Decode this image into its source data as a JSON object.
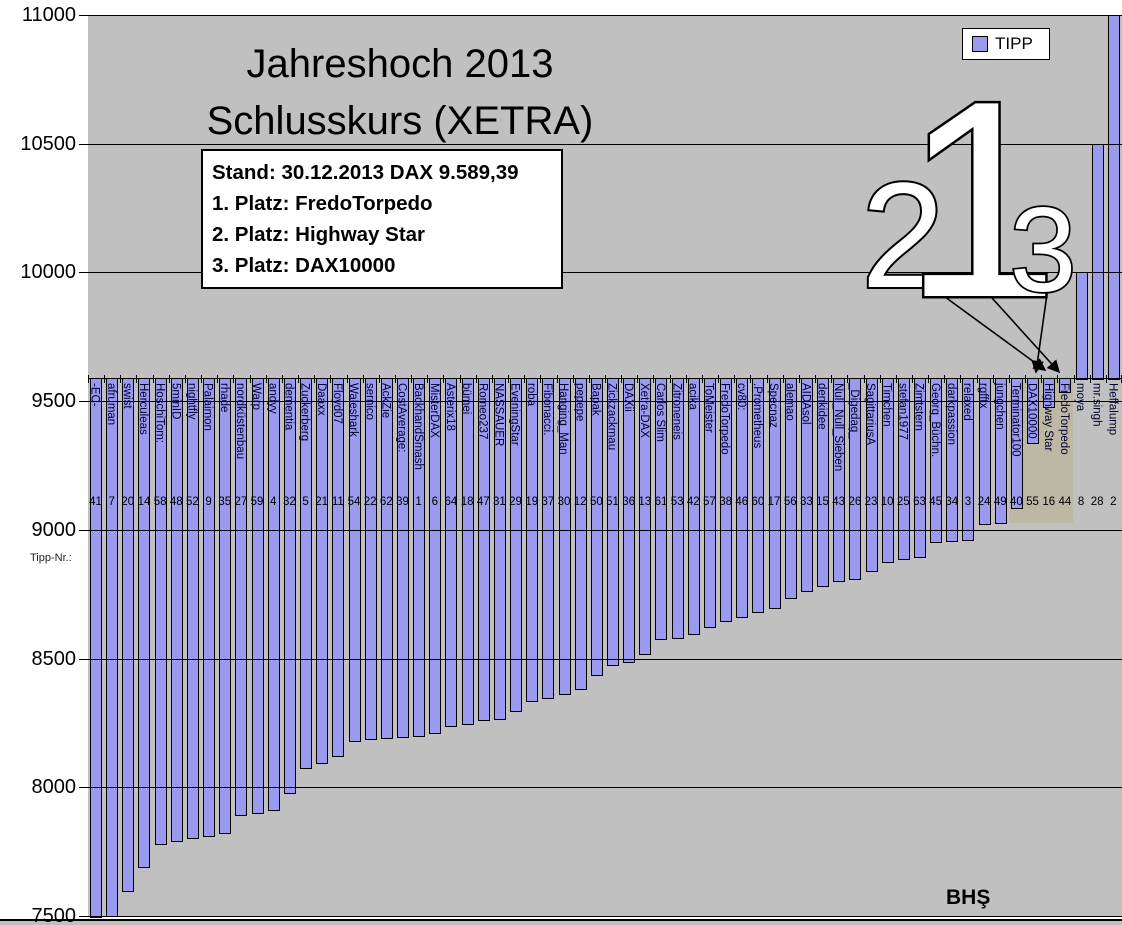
{
  "title": {
    "line1": "Jahreshoch 2013",
    "line2": "Schlusskurs (XETRA)"
  },
  "info_box": {
    "lines": [
      "Stand: 30.12.2013 DAX 9.589,39",
      "1. Platz: FredoTorpedo",
      "2. Platz: Highway Star",
      "3. Platz: DAX10000"
    ]
  },
  "legend": {
    "label": "TIPP",
    "marker_color": "#9a9aef"
  },
  "axis_title": "Tipp-Nr.:",
  "watermark": "BHŞ",
  "annotations": {
    "rank1": "1",
    "rank2": "2",
    "rank3": "3"
  },
  "chart_data": {
    "type": "bar",
    "series_name": "TIPP",
    "title": "Jahreshoch 2013 Schlusskurs (XETRA)",
    "ylim": [
      7500,
      11000
    ],
    "y_ticks": [
      11000,
      10500,
      10000,
      9500,
      9000,
      8500,
      8000,
      7500
    ],
    "grid": true,
    "baseline": 9589.39,
    "bar_color": "#9a9aef",
    "note": "bars drawn from baseline 9589.39 (DAX Schlusskurs) to each Tipp value; x labels are player names, numbers are Tipp-Nr.",
    "bars": [
      {
        "name": "-EC-",
        "tipp": 41,
        "value": 7500
      },
      {
        "name": "afruman",
        "tipp": 7,
        "value": 7505
      },
      {
        "name": "swist",
        "tipp": 20,
        "value": 7600
      },
      {
        "name": "Herculeas",
        "tipp": 14,
        "value": 7695
      },
      {
        "name": "HoschiTom:",
        "tipp": 58,
        "value": 7785
      },
      {
        "name": "5minID",
        "tipp": 48,
        "value": 7795
      },
      {
        "name": "nightfly",
        "tipp": 52,
        "value": 7805
      },
      {
        "name": "Palaimon",
        "tipp": 9,
        "value": 7815
      },
      {
        "name": "rhade",
        "tipp": 35,
        "value": 7825
      },
      {
        "name": "nordküstenbau",
        "tipp": 27,
        "value": 7895
      },
      {
        "name": "Warp",
        "tipp": 59,
        "value": 7905
      },
      {
        "name": "andyy",
        "tipp": 4,
        "value": 7915
      },
      {
        "name": "dementia",
        "tipp": 32,
        "value": 7980
      },
      {
        "name": "Zuckerberg",
        "tipp": 5,
        "value": 8080
      },
      {
        "name": "Daaxx",
        "tipp": 21,
        "value": 8100
      },
      {
        "name": "Floyd07",
        "tipp": 11,
        "value": 8125
      },
      {
        "name": "Waleshark",
        "tipp": 54,
        "value": 8185
      },
      {
        "name": "sernico",
        "tipp": 22,
        "value": 8190
      },
      {
        "name": "AckZie",
        "tipp": 62,
        "value": 8195
      },
      {
        "name": "CostAverage:",
        "tipp": 39,
        "value": 8200
      },
      {
        "name": "BackhandSmash",
        "tipp": 1,
        "value": 8205
      },
      {
        "name": "MisterDAX",
        "tipp": 6,
        "value": 8215
      },
      {
        "name": "Asterix18",
        "tipp": 64,
        "value": 8240
      },
      {
        "name": "bümei",
        "tipp": 18,
        "value": 8250
      },
      {
        "name": "Romeo237",
        "tipp": 47,
        "value": 8265
      },
      {
        "name": "NASSAUER",
        "tipp": 31,
        "value": 8270
      },
      {
        "name": "EveningStar",
        "tipp": 29,
        "value": 8300
      },
      {
        "name": "roba",
        "tipp": 19,
        "value": 8340
      },
      {
        "name": "Fibonacci.",
        "tipp": 37,
        "value": 8350
      },
      {
        "name": "Hanging_Man",
        "tipp": 30,
        "value": 8365
      },
      {
        "name": "pepepe",
        "tipp": 12,
        "value": 8385
      },
      {
        "name": "Bapak",
        "tipp": 50,
        "value": 8440
      },
      {
        "name": "Zickzackmau",
        "tipp": 51,
        "value": 8480
      },
      {
        "name": "DAXii",
        "tipp": 36,
        "value": 8490
      },
      {
        "name": "Xetra-DAX",
        "tipp": 13,
        "value": 8520
      },
      {
        "name": "Carlos Slim",
        "tipp": 61,
        "value": 8580
      },
      {
        "name": "Zitroneneis",
        "tipp": 53,
        "value": 8585
      },
      {
        "name": "acika",
        "tipp": 42,
        "value": 8600
      },
      {
        "name": "ToMeister",
        "tipp": 57,
        "value": 8625
      },
      {
        "name": "FredoTorpedo",
        "tipp": 38,
        "value": 8650
      },
      {
        "name": "cv80:",
        "tipp": 46,
        "value": 8665
      },
      {
        "name": ".Prometheus",
        "tipp": 60,
        "value": 8685
      },
      {
        "name": "Specnaz",
        "tipp": 17,
        "value": 8700
      },
      {
        "name": "alemao",
        "tipp": 56,
        "value": 8740
      },
      {
        "name": "AIDAsol",
        "tipp": 33,
        "value": 8765
      },
      {
        "name": "denkidee",
        "tipp": 15,
        "value": 8785
      },
      {
        "name": "Null_Null_Sieben",
        "tipp": 43,
        "value": 8805
      },
      {
        "name": "_Digedag_",
        "tipp": 26,
        "value": 8812
      },
      {
        "name": "SagittariusA",
        "tipp": 23,
        "value": 8845
      },
      {
        "name": "Timchen",
        "tipp": 10,
        "value": 8880
      },
      {
        "name": "stefan1977",
        "tipp": 25,
        "value": 8890
      },
      {
        "name": "Zimtstern",
        "tipp": 63,
        "value": 8900
      },
      {
        "name": "Georg_Büchn.",
        "tipp": 45,
        "value": 8955
      },
      {
        "name": "darkpassion",
        "tipp": 34,
        "value": 8960
      },
      {
        "name": "relaxed",
        "tipp": 3,
        "value": 8965
      },
      {
        "name": "rgfftx",
        "tipp": 24,
        "value": 9025
      },
      {
        "name": "jungchen",
        "tipp": 49,
        "value": 9030
      },
      {
        "name": "Terminator100",
        "tipp": 40,
        "value": 9090
      },
      {
        "name": "DAX10000",
        "tipp": 55,
        "value": 9340
      },
      {
        "name": "Highway Star",
        "tipp": 16,
        "value": 9480
      },
      {
        "name": "FredoTorpedo",
        "tipp": 44,
        "value": 9540
      },
      {
        "name": "moya",
        "tipp": 8,
        "value": 10000
      },
      {
        "name": "mr.singh",
        "tipp": 28,
        "value": 10500
      },
      {
        "name": "Heffalump",
        "tipp": 2,
        "value": 11000
      }
    ]
  }
}
